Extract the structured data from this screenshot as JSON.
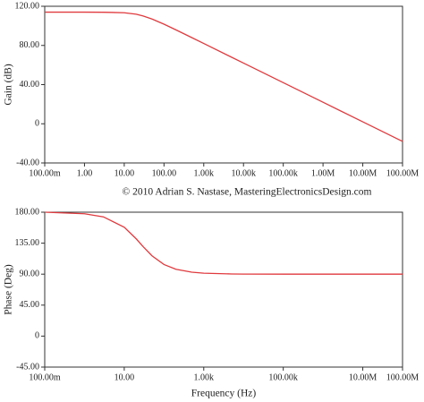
{
  "chart_data": [
    {
      "type": "line",
      "y_label": "Gain (dB)",
      "xscale": "log",
      "x": [
        0.1,
        1,
        3,
        10,
        20,
        30,
        50,
        100,
        200,
        500,
        1000,
        5000,
        10000,
        100000,
        1000000,
        10000000,
        100000000
      ],
      "series": [
        {
          "color": "#e03a3e",
          "values": [
            114.0,
            114.0,
            113.9,
            113.4,
            111.9,
            110.1,
            107.0,
            101.7,
            95.9,
            88.0,
            82.0,
            68.0,
            62.0,
            42.0,
            22.0,
            2.0,
            -18.0
          ]
        }
      ],
      "xlim": [
        0.1,
        100000000
      ],
      "xticks": [
        {
          "value": 0.1,
          "label": "100.00m"
        },
        {
          "value": 1,
          "label": "1.00"
        },
        {
          "value": 10,
          "label": "10.00"
        },
        {
          "value": 100,
          "label": "100.00"
        },
        {
          "value": 1000,
          "label": "1.00k"
        },
        {
          "value": 10000,
          "label": "10.00k"
        },
        {
          "value": 100000,
          "label": "100.00k"
        },
        {
          "value": 1000000,
          "label": "1.00M"
        },
        {
          "value": 10000000,
          "label": "10.00M"
        },
        {
          "value": 100000000,
          "label": "100.00M"
        }
      ],
      "ylim": [
        -40,
        120
      ],
      "yticks": [
        {
          "value": -40,
          "label": "-40.00"
        },
        0,
        {
          "value": 40,
          "label": "40.00"
        },
        {
          "value": 80,
          "label": "80.00"
        },
        {
          "value": 120,
          "label": "120.00"
        }
      ]
    },
    {
      "type": "line",
      "y_label": "Phase (Deg)",
      "x_label": "Frequency (Hz)",
      "xscale": "log",
      "x": [
        0.1,
        1,
        3,
        10,
        20,
        30,
        50,
        100,
        200,
        500,
        1000,
        5000,
        10000,
        100000,
        1000000,
        10000000,
        100000000
      ],
      "series": [
        {
          "color": "#e03a3e",
          "values": [
            180.0,
            177.7,
            173.2,
            158.2,
            141.3,
            129.8,
            116.6,
            104.0,
            97.1,
            92.9,
            91.4,
            90.3,
            90.1,
            90.0,
            90.0,
            90.0,
            90.0
          ]
        }
      ],
      "xlim": [
        0.1,
        100000000
      ],
      "xticks": [
        {
          "value": 0.1,
          "label": "100.00m"
        },
        {
          "value": 10,
          "label": "10.00"
        },
        {
          "value": 1000,
          "label": "1.00k"
        },
        {
          "value": 100000,
          "label": "100.00k"
        },
        {
          "value": 10000000,
          "label": "10.00M"
        },
        {
          "value": 100000000,
          "label": "100.00M"
        }
      ],
      "ylim": [
        -45,
        180
      ],
      "yticks": [
        {
          "value": -45,
          "label": "-45.00"
        },
        0,
        {
          "value": 45,
          "label": "45.00"
        },
        {
          "value": 90,
          "label": "90.00"
        },
        {
          "value": 135,
          "label": "135.00"
        },
        {
          "value": 180,
          "label": "180.00"
        }
      ]
    }
  ],
  "caption": "© 2010 Adrian S. Nastase, MasteringElectronicsDesign.com"
}
